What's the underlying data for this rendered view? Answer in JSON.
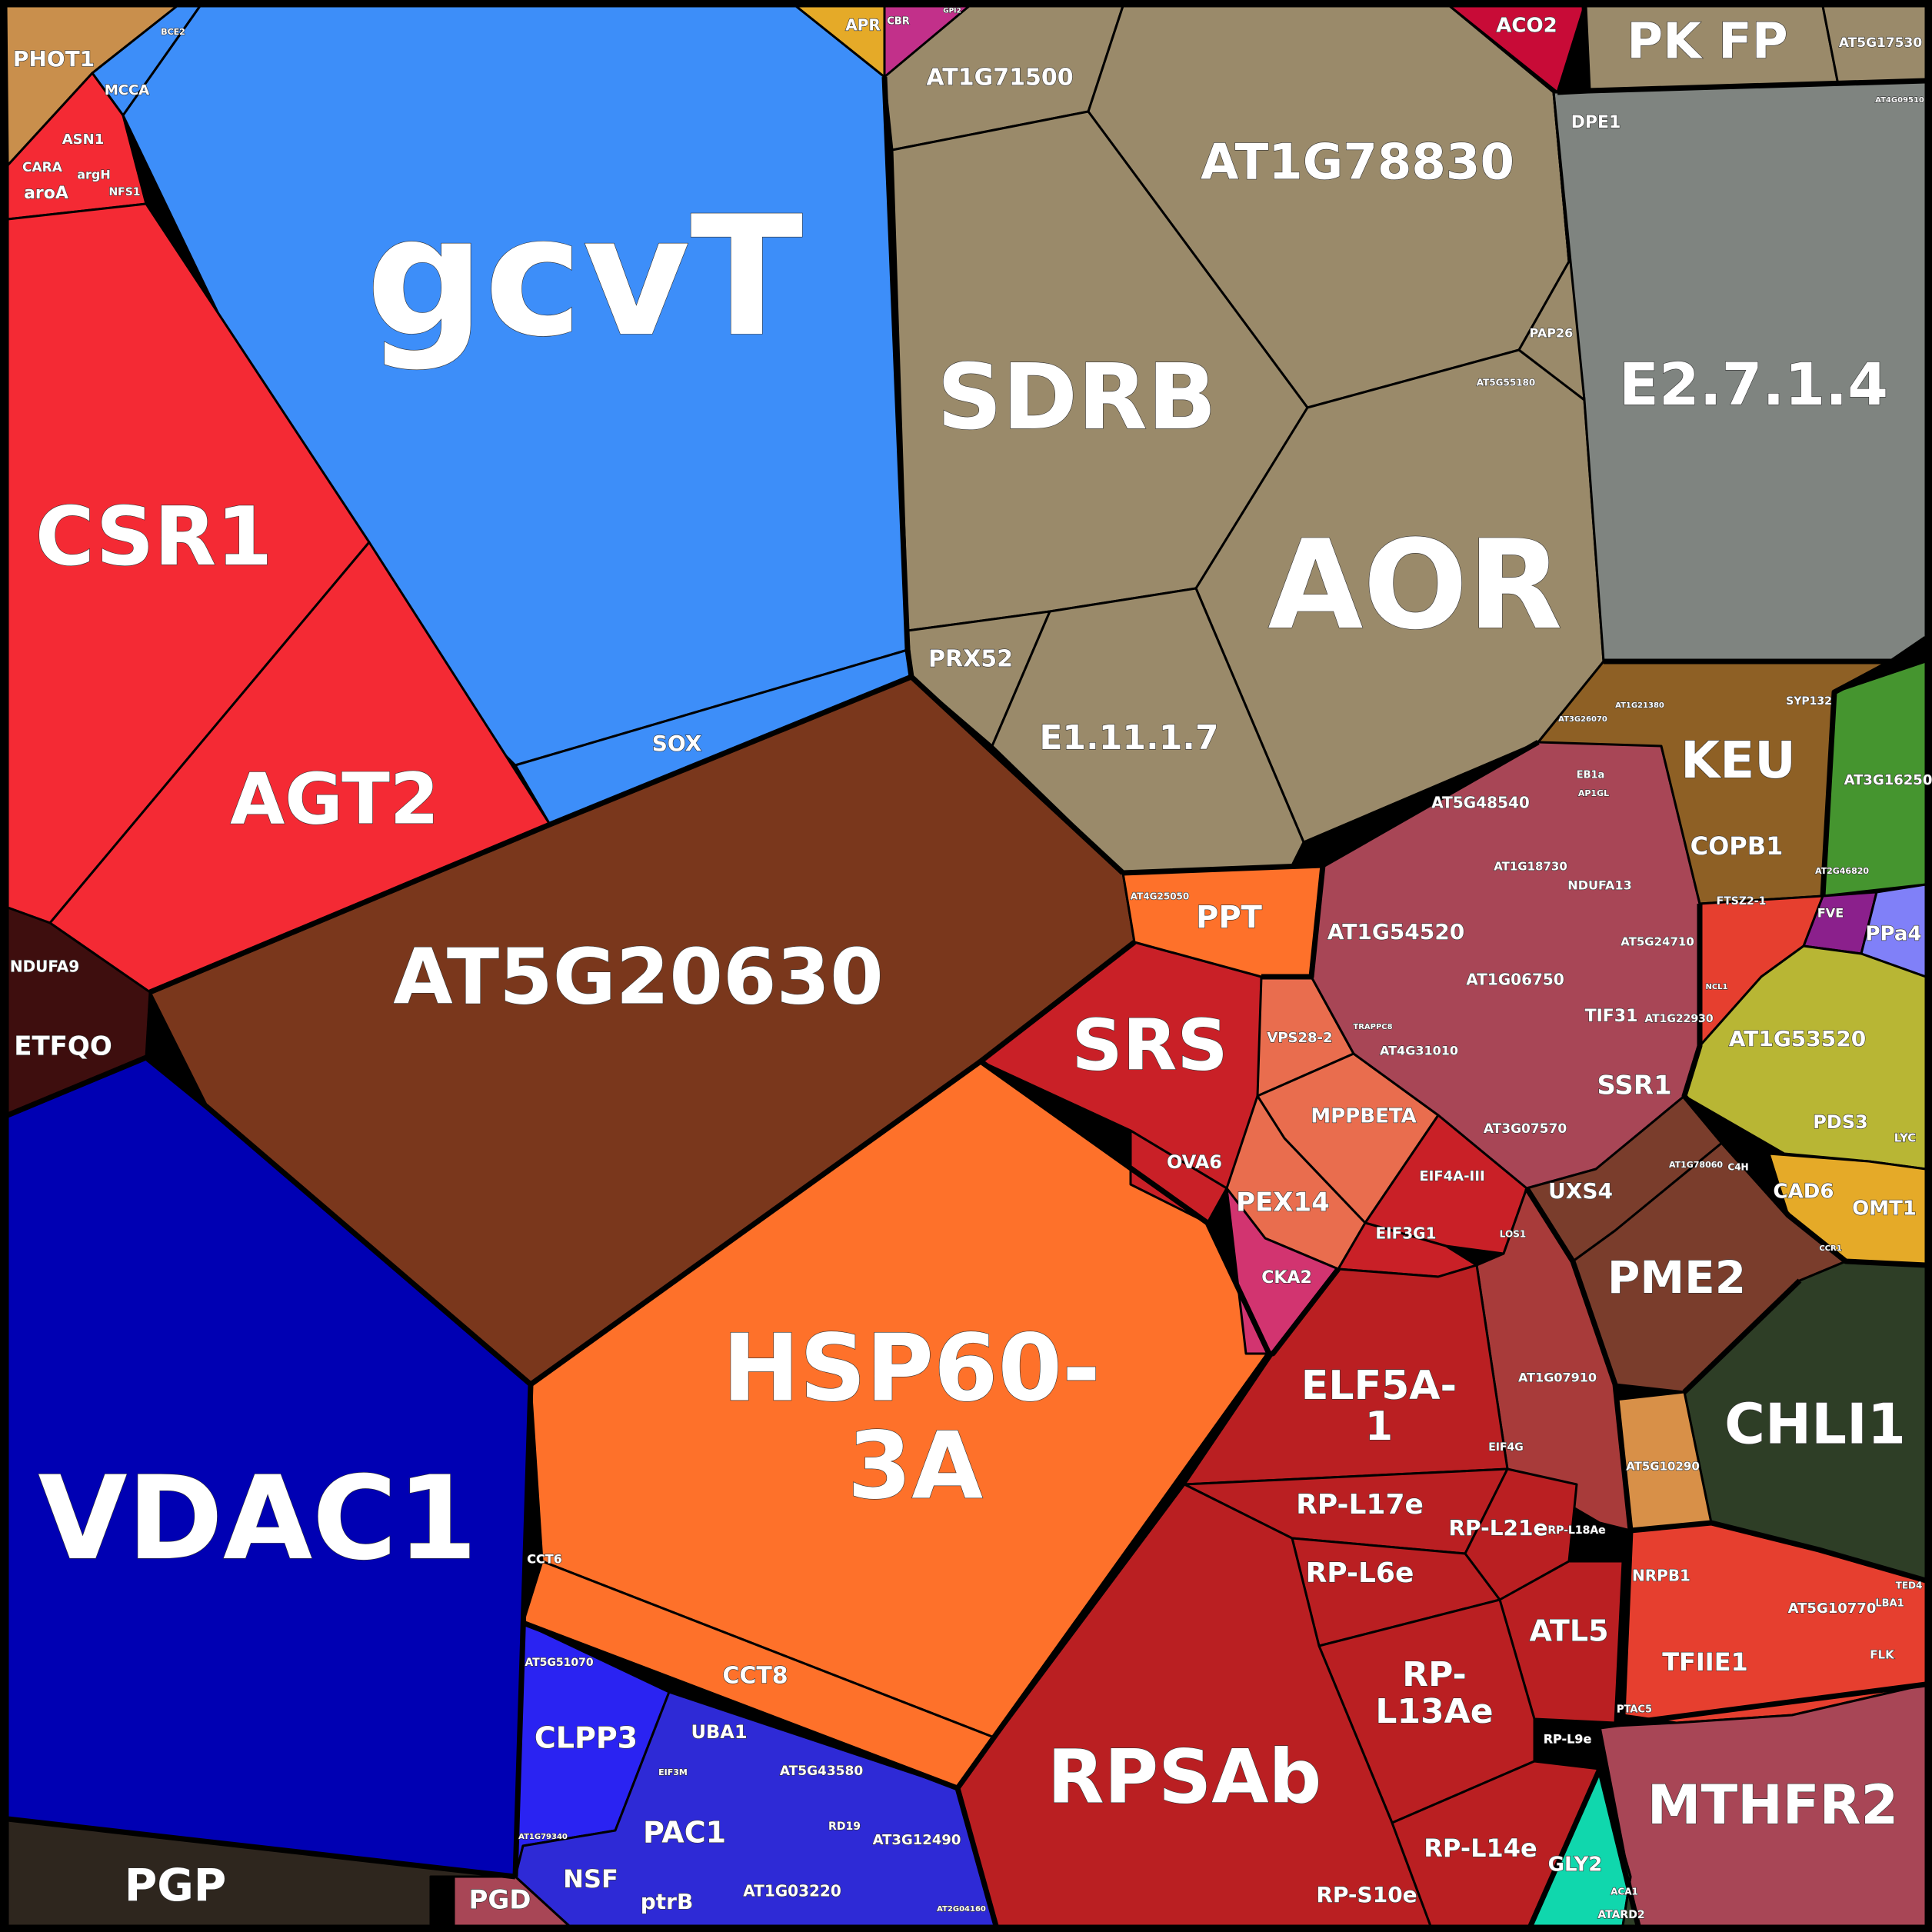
{
  "colors": {
    "blue": "#3d8ef9",
    "red": "#f42a34",
    "tan": "#9a8a6a",
    "grey": "#7f8480",
    "brown": "#7a371c",
    "orange": "#fe712a",
    "darkred": "#ba1f22",
    "navy": "#0000b3",
    "mauve": "#a84656",
    "purpleblue": "#2e2ad6",
    "darkgreen": "#2e3e26",
    "olive": "#b8b634",
    "gold": "#e5aa28",
    "lightbrown": "#8e6025",
    "green": "#45952f",
    "maroon": "#3e0e0e",
    "violet": "#8080f8",
    "teal": "#10d7ad",
    "copper": "#d89048",
    "salmon": "#e96d4e",
    "pink": "#d23470",
    "rust": "#7a3d2c",
    "brick": "#e63f2f"
  },
  "labels": {
    "gcvT": "gcvT",
    "CSR1": "CSR1",
    "AGT2": "AGT2",
    "SOX": "SOX",
    "PHOT1": "PHOT1",
    "MCCA": "MCCA",
    "BCE2": "BCE2",
    "ASN1": "ASN1",
    "CARA": "CARA",
    "argH": "argH",
    "aroA": "aroA",
    "NFS1": "NFS1",
    "APR": "APR",
    "CBR": "CBR",
    "GPI2": "GPI2",
    "ACO2": "ACO2",
    "PK_FP": "PK FP",
    "AT5G17530": "AT5G17530",
    "AT4G09510": "AT4G09510",
    "DPE1": "DPE1",
    "AT1G71500": "AT1G71500",
    "AT1G78830": "AT1G78830",
    "SDRB": "SDRB",
    "PAP26": "PAP26",
    "AT5G55180": "AT5G55180",
    "E2_7_1_4": "E2.7.1.4",
    "AOR": "AOR",
    "PRX52": "PRX52",
    "E1_11_1_7": "E1.11.1.7",
    "AT5G20630": "AT5G20630",
    "NDUFA9": "NDUFA9",
    "ETFQO": "ETFQO",
    "VDAC1": "VDAC1",
    "HSP60_3A_1": "HSP60-",
    "HSP60_3A_2": "3A",
    "SRS": "SRS",
    "OVA6": "OVA6",
    "PPT": "PPT",
    "AT4G25050": "AT4G25050",
    "VPS28_2": "VPS28-2",
    "MPPBETA": "MPPBETA",
    "PEX14": "PEX14",
    "CKA2": "CKA2",
    "AT1G54520": "AT1G54520",
    "AT5G48540": "AT5G48540",
    "AT1G18730": "AT1G18730",
    "NDUFA13": "NDUFA13",
    "AT5G24710": "AT5G24710",
    "AT1G06750": "AT1G06750",
    "TIF31": "TIF31",
    "AT1G22930": "AT1G22930",
    "AT4G31010": "AT4G31010",
    "SSR1": "SSR1",
    "AT3G07570": "AT3G07570",
    "TRAPPC8": "TRAPPC8",
    "NCL1": "NCL1",
    "KEU": "KEU",
    "COPB1": "COPB1",
    "AT3G26070": "AT3G26070",
    "AT1G21380": "AT1G21380",
    "SYP132": "SYP132",
    "EB1a": "EB1a",
    "AP1GL": "AP1GL",
    "FTSZ2_1": "FTSZ2-1",
    "AT3G16250": "AT3G16250",
    "AT2G46820": "AT2G46820",
    "PPa4": "PPa4",
    "FVE": "FVE",
    "AT1G53520": "AT1G53520",
    "PDS3": "PDS3",
    "LYC": "LYC",
    "CAD6": "CAD6",
    "OMT1": "OMT1",
    "C4H": "C4H",
    "CCR1": "CCR1",
    "UXS4": "UXS4",
    "AT1G78060": "AT1G78060",
    "PME2": "PME2",
    "CHLI1": "CHLI1",
    "EIF4A_III": "EIF4A-III",
    "EIF3G1": "EIF3G1",
    "LOS1": "LOS1",
    "ELF5A_1a": "ELF5A-",
    "ELF5A_1b": "1",
    "EIF4G": "EIF4G",
    "AT1G07910": "AT1G07910",
    "RP_L17e": "RP-L17e",
    "RP_L21e": "RP-L21e",
    "RP_L18Ae": "RP-L18Ae",
    "RP_L6e": "RP-L6e",
    "ATL5": "ATL5",
    "RP_L13Ae_1": "RP-",
    "RP_L13Ae_2": "L13Ae",
    "RP_L9e": "RP-L9e",
    "RPSAb": "RPSAb",
    "RP_L14e": "RP-L14e",
    "RP_S10e": "RP-S10e",
    "GLY2": "GLY2",
    "ACA1": "ACA1",
    "ATARD2": "ATARD2",
    "MTHFR2": "MTHFR2",
    "AT5G10290": "AT5G10290",
    "NRPB1": "NRPB1",
    "TFIIE1": "TFIIE1",
    "AT5G10770": "AT5G10770",
    "PTAC5": "PTAC5",
    "LBA1": "LBA1",
    "TED4": "TED4",
    "FLK": "FLK",
    "CCT6": "CCT6",
    "CCT8": "CCT8",
    "AT5G51070": "AT5G51070",
    "CLPP3": "CLPP3",
    "UBA1": "UBA1",
    "EIF3M": "EIF3M",
    "AT5G43580": "AT5G43580",
    "PAC1": "PAC1",
    "RD19": "RD19",
    "AT3G12490": "AT3G12490",
    "NSF": "NSF",
    "ptrB": "ptrB",
    "AT1G03220": "AT1G03220",
    "AT1G79340": "AT1G79340",
    "PGP": "PGP",
    "PGD": "PGD",
    "AT2G04160": "AT2G04160"
  }
}
